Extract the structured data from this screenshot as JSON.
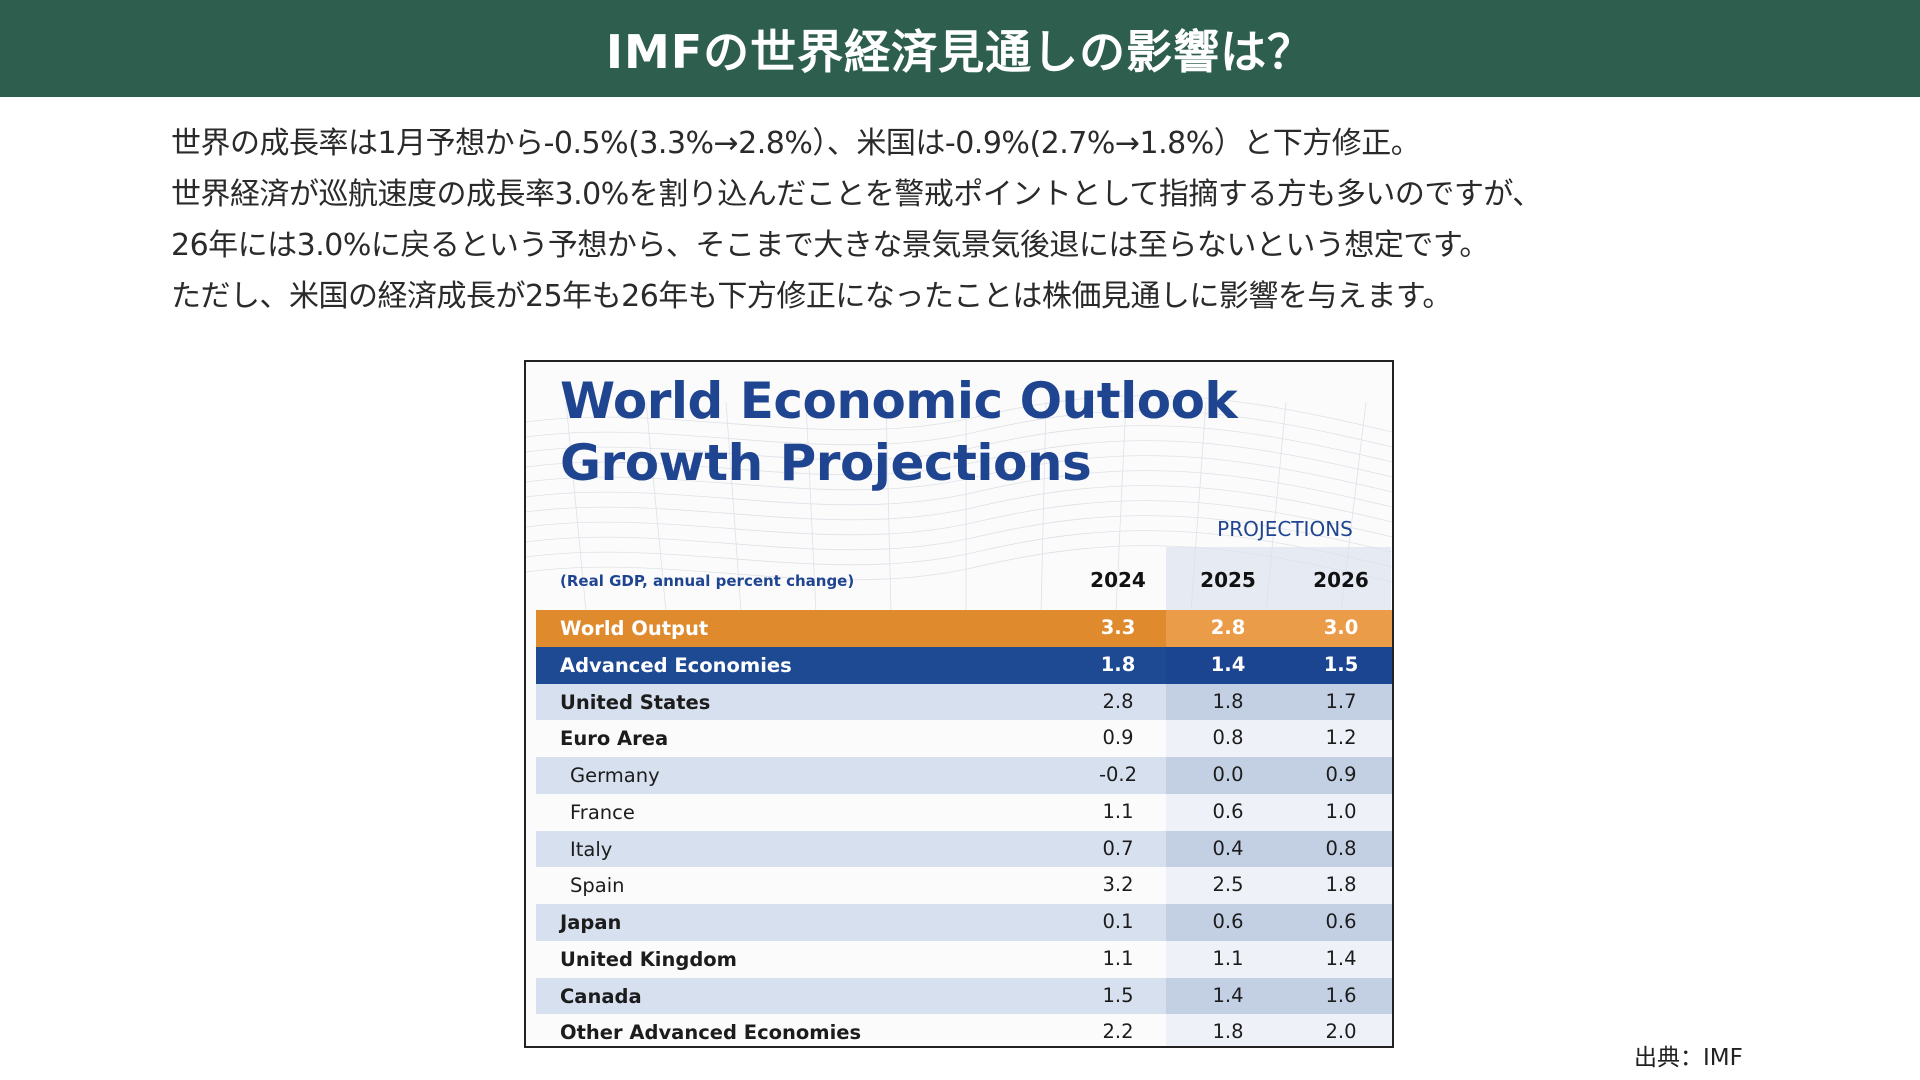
{
  "header": {
    "title": "IMFの世界経済見通しの影響は？"
  },
  "body": {
    "lines": [
      "世界の成長率は1月予想から-0.5%(3.3%→2.8%）、米国は-0.9%(2.7%→1.8%）と下方修正。",
      "世界経済が巡航速度の成長率3.0%を割り込んだことを警戒ポイントとして指摘する方も多いのですが、",
      "26年には3.0%に戻るという予想から、そこまで大きな景気景気後退には至らないという想定です。",
      "ただし、米国の経済成長が25年も26年も下方修正になったことは株価見通しに影響を与えます。"
    ]
  },
  "figure": {
    "title_line1": "World Economic Outlook",
    "title_line2": "Growth Projections",
    "projections_label": "PROJECTIONS",
    "unit_label": "(Real GDP, annual percent change)",
    "colors": {
      "title": "#1f4591",
      "orange": "#e08a2e",
      "blue": "#1e4a93",
      "stripe": "#d6e0ee"
    },
    "years": [
      "2024",
      "2025",
      "2026"
    ],
    "rows": [
      {
        "name": "World Output",
        "style": "orange",
        "v2024": "3.3",
        "v2025": "2.8",
        "v2026": "3.0"
      },
      {
        "name": "Advanced Economies",
        "style": "blue",
        "v2024": "1.8",
        "v2025": "1.4",
        "v2026": "1.5"
      },
      {
        "name": "United States",
        "style": "stripe",
        "v2024": "2.8",
        "v2025": "1.8",
        "v2026": "1.7"
      },
      {
        "name": "Euro Area",
        "style": "white",
        "v2024": "0.9",
        "v2025": "0.8",
        "v2026": "1.2"
      },
      {
        "name": "Germany",
        "style": "stripe sub",
        "v2024": "-0.2",
        "v2025": "0.0",
        "v2026": "0.9"
      },
      {
        "name": "France",
        "style": "white sub",
        "v2024": "1.1",
        "v2025": "0.6",
        "v2026": "1.0"
      },
      {
        "name": "Italy",
        "style": "stripe sub",
        "v2024": "0.7",
        "v2025": "0.4",
        "v2026": "0.8"
      },
      {
        "name": "Spain",
        "style": "white sub",
        "v2024": "3.2",
        "v2025": "2.5",
        "v2026": "1.8"
      },
      {
        "name": "Japan",
        "style": "stripe",
        "v2024": "0.1",
        "v2025": "0.6",
        "v2026": "0.6"
      },
      {
        "name": "United Kingdom",
        "style": "white",
        "v2024": "1.1",
        "v2025": "1.1",
        "v2026": "1.4"
      },
      {
        "name": "Canada",
        "style": "stripe",
        "v2024": "1.5",
        "v2025": "1.4",
        "v2026": "1.6"
      },
      {
        "name": "Other Advanced Economies",
        "style": "white",
        "v2024": "2.2",
        "v2025": "1.8",
        "v2026": "2.0"
      }
    ]
  },
  "source": {
    "text": "出典：IMF"
  }
}
